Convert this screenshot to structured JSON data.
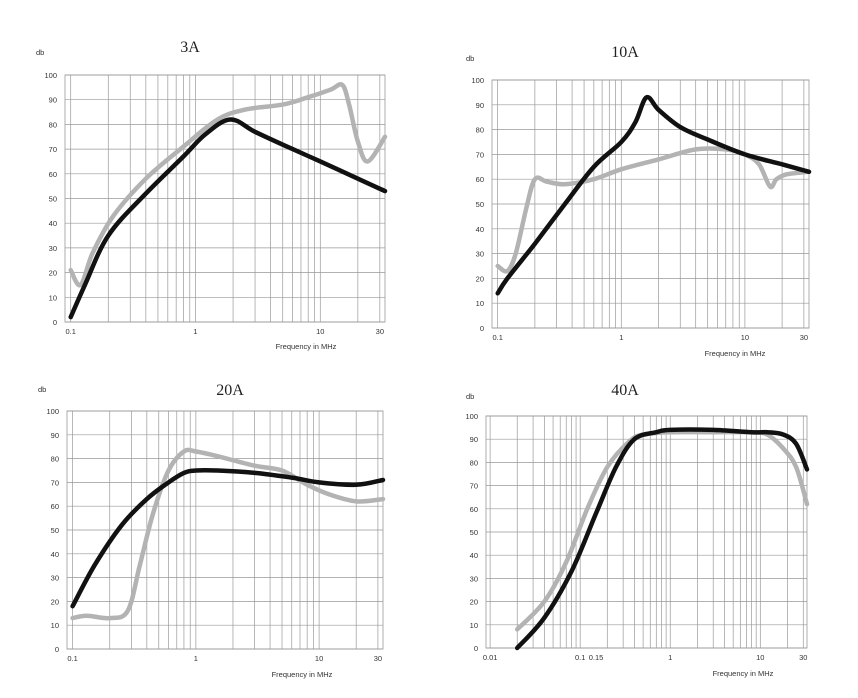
{
  "chart_data": [
    {
      "type": "line",
      "title": "3A",
      "ylabel": "db",
      "xlabel": "Frequency in MHz",
      "x_scale": "log",
      "xlim": [
        0.09,
        33
      ],
      "ylim": [
        0,
        100
      ],
      "yticks": [
        "0",
        "10",
        "20",
        "30",
        "40",
        "50",
        "60",
        "70",
        "80",
        "90",
        "100"
      ],
      "xticks": [
        "0.1",
        "1",
        "10",
        "30"
      ],
      "grid": true,
      "series": [
        {
          "color": "#111111",
          "x": [
            0.1,
            0.13,
            0.2,
            0.4,
            0.8,
            1.2,
            1.9,
            3,
            6,
            10,
            20,
            33
          ],
          "y": [
            2,
            15,
            35,
            52,
            67,
            76,
            82,
            77,
            70,
            65,
            58,
            53
          ]
        },
        {
          "color": "#b3b3b3",
          "x": [
            0.1,
            0.12,
            0.15,
            0.22,
            0.4,
            0.8,
            1.5,
            2.5,
            5,
            8,
            12,
            15,
            17,
            20,
            24,
            33
          ],
          "y": [
            21,
            15,
            28,
            43,
            58,
            71,
            82,
            86,
            88,
            91,
            94,
            96,
            88,
            73,
            65,
            75
          ]
        }
      ]
    },
    {
      "type": "line",
      "title": "10A",
      "ylabel": "db",
      "xlabel": "Frequency in MHz",
      "x_scale": "log",
      "xlim": [
        0.09,
        33
      ],
      "ylim": [
        0,
        100
      ],
      "yticks": [
        "0",
        "10",
        "20",
        "30",
        "40",
        "50",
        "60",
        "70",
        "80",
        "90",
        "100"
      ],
      "xticks": [
        "0.1",
        "1",
        "10",
        "30"
      ],
      "grid": true,
      "series": [
        {
          "color": "#111111",
          "x": [
            0.1,
            0.12,
            0.2,
            0.35,
            0.6,
            1,
            1.3,
            1.6,
            2,
            3,
            5,
            10,
            20,
            33
          ],
          "y": [
            14,
            20,
            34,
            50,
            65,
            75,
            83,
            93,
            88,
            81,
            76,
            70,
            66,
            63
          ]
        },
        {
          "color": "#b3b3b3",
          "x": [
            0.1,
            0.12,
            0.14,
            0.17,
            0.2,
            0.25,
            0.35,
            0.6,
            1,
            2,
            4,
            7,
            10,
            13,
            16,
            18,
            22,
            33
          ],
          "y": [
            25,
            23,
            30,
            48,
            60,
            59,
            58,
            60,
            64,
            68,
            72,
            72,
            70,
            66,
            57,
            60,
            62,
            63
          ]
        }
      ]
    },
    {
      "type": "line",
      "title": "20A",
      "ylabel": "db",
      "xlabel": "Frequency in MHz",
      "x_scale": "log",
      "xlim": [
        0.09,
        33
      ],
      "ylim": [
        0,
        100
      ],
      "yticks": [
        "0",
        "10",
        "20",
        "30",
        "40",
        "50",
        "60",
        "70",
        "80",
        "90",
        "100"
      ],
      "xticks": [
        "0.1",
        "1",
        "10",
        "30"
      ],
      "grid": true,
      "series": [
        {
          "color": "#111111",
          "x": [
            0.1,
            0.15,
            0.25,
            0.4,
            0.6,
            0.8,
            1,
            1.5,
            3,
            6,
            10,
            20,
            33
          ],
          "y": [
            18,
            35,
            52,
            63,
            70,
            74,
            75,
            75,
            74,
            72,
            70,
            69,
            71
          ]
        },
        {
          "color": "#b3b3b3",
          "x": [
            0.1,
            0.13,
            0.2,
            0.28,
            0.35,
            0.45,
            0.6,
            0.8,
            1,
            1.5,
            3,
            5,
            8,
            12,
            20,
            33
          ],
          "y": [
            13,
            14,
            13,
            16,
            35,
            57,
            75,
            83,
            83,
            81,
            77,
            75,
            69,
            65,
            62,
            63
          ]
        }
      ]
    },
    {
      "type": "line",
      "title": "40A",
      "ylabel": "db",
      "xlabel": "Frequency in MHz",
      "x_scale": "log",
      "xlim": [
        0.009,
        33
      ],
      "ylim": [
        0,
        100
      ],
      "yticks": [
        "0",
        "10",
        "20",
        "30",
        "40",
        "50",
        "60",
        "70",
        "80",
        "90",
        "100"
      ],
      "xticks": [
        "0.01",
        "0.1",
        "0.15",
        "1",
        "10",
        "30"
      ],
      "grid": true,
      "series": [
        {
          "color": "#111111",
          "x": [
            0.02,
            0.04,
            0.08,
            0.15,
            0.25,
            0.4,
            0.7,
            1,
            3,
            8,
            12,
            18,
            25,
            33
          ],
          "y": [
            0,
            13,
            33,
            58,
            78,
            90,
            93,
            94,
            94,
            93,
            93,
            92,
            88,
            77
          ]
        },
        {
          "color": "#b3b3b3",
          "x": [
            0.02,
            0.04,
            0.07,
            0.12,
            0.2,
            0.35,
            0.5,
            1,
            3,
            8,
            12,
            18,
            25,
            33
          ],
          "y": [
            8,
            20,
            37,
            60,
            78,
            89,
            92,
            93,
            93,
            93,
            92,
            86,
            78,
            62
          ]
        }
      ]
    }
  ]
}
